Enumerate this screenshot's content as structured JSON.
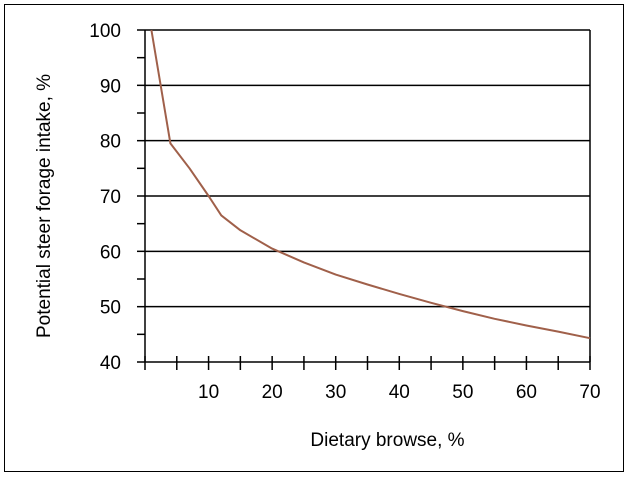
{
  "chart_data": {
    "type": "line",
    "title": "",
    "xlabel": "Dietary browse, %",
    "ylabel": "Potential steer forage intake, %",
    "xlim": [
      0,
      70
    ],
    "ylim": [
      40,
      100
    ],
    "x_ticks": [
      10,
      20,
      30,
      40,
      50,
      60,
      70
    ],
    "y_ticks": [
      40,
      50,
      60,
      70,
      80,
      90,
      100
    ],
    "grid": "horizontal",
    "legend": "none",
    "series": [
      {
        "color": "#a0604a",
        "x": [
          1,
          4,
          7,
          10,
          12,
          15,
          20,
          25,
          30,
          35,
          40,
          45,
          50,
          55,
          60,
          65,
          70
        ],
        "y": [
          100,
          79.5,
          75,
          70,
          66.5,
          63.8,
          60.5,
          58,
          55.8,
          54,
          52.3,
          50.7,
          49.2,
          47.8,
          46.6,
          45.5,
          44.3
        ]
      }
    ]
  }
}
